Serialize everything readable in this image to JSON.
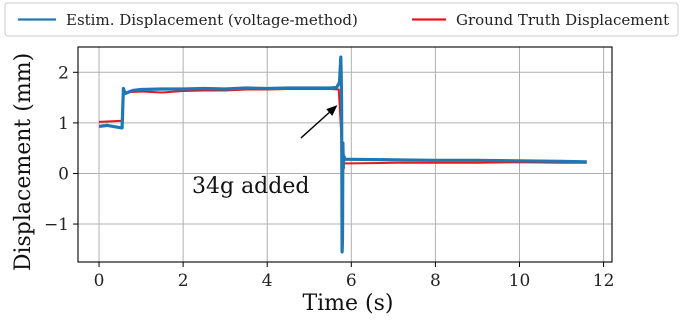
{
  "chart_data": {
    "type": "line",
    "xlabel": "Time (s)",
    "ylabel": "Displacement (mm)",
    "xlim": [
      -0.5,
      12.2
    ],
    "ylim": [
      -1.75,
      2.5
    ],
    "x_ticks": [
      0,
      2,
      4,
      6,
      8,
      10,
      12
    ],
    "y_ticks": [
      -1,
      0,
      1,
      2
    ],
    "x_tick_labels": [
      "0",
      "2",
      "4",
      "6",
      "8",
      "10",
      "12"
    ],
    "y_tick_labels": [
      "−1",
      "0",
      "1",
      "2"
    ],
    "grid": true,
    "legend": {
      "placement": "top-outside",
      "columns": 2
    },
    "series": [
      {
        "name": "Estim. Displacement (voltage-method)",
        "color": "#1f77b4",
        "points": [
          [
            0.0,
            0.93
          ],
          [
            0.2,
            0.95
          ],
          [
            0.4,
            0.92
          ],
          [
            0.55,
            0.9
          ],
          [
            0.58,
            1.68
          ],
          [
            0.62,
            1.58
          ],
          [
            0.8,
            1.64
          ],
          [
            1.0,
            1.66
          ],
          [
            1.5,
            1.67
          ],
          [
            2.0,
            1.67
          ],
          [
            2.5,
            1.68
          ],
          [
            3.0,
            1.67
          ],
          [
            3.5,
            1.69
          ],
          [
            4.0,
            1.68
          ],
          [
            4.5,
            1.69
          ],
          [
            5.0,
            1.69
          ],
          [
            5.5,
            1.69
          ],
          [
            5.65,
            1.7
          ],
          [
            5.72,
            1.8
          ],
          [
            5.75,
            2.3
          ],
          [
            5.76,
            1.95
          ],
          [
            5.77,
            1.4
          ],
          [
            5.78,
            -1.55
          ],
          [
            5.79,
            -1.3
          ],
          [
            5.8,
            0.6
          ],
          [
            5.81,
            0.1
          ],
          [
            5.82,
            0.35
          ],
          [
            5.85,
            0.28
          ],
          [
            6.0,
            0.28
          ],
          [
            7.0,
            0.27
          ],
          [
            8.0,
            0.26
          ],
          [
            9.0,
            0.26
          ],
          [
            10.0,
            0.25
          ],
          [
            11.0,
            0.24
          ],
          [
            11.6,
            0.23
          ]
        ]
      },
      {
        "name": "Ground Truth Displacement",
        "color": "#e31a1c",
        "points": [
          [
            0.0,
            1.02
          ],
          [
            0.5,
            1.04
          ],
          [
            0.55,
            1.04
          ],
          [
            0.58,
            1.6
          ],
          [
            1.0,
            1.62
          ],
          [
            1.5,
            1.6
          ],
          [
            2.0,
            1.63
          ],
          [
            2.5,
            1.64
          ],
          [
            3.0,
            1.64
          ],
          [
            3.5,
            1.66
          ],
          [
            4.0,
            1.66
          ],
          [
            4.5,
            1.67
          ],
          [
            5.0,
            1.67
          ],
          [
            5.5,
            1.67
          ],
          [
            5.7,
            1.66
          ],
          [
            5.72,
            1.4
          ],
          [
            5.8,
            0.2
          ],
          [
            6.0,
            0.2
          ],
          [
            7.0,
            0.21
          ],
          [
            8.0,
            0.21
          ],
          [
            9.0,
            0.21
          ],
          [
            10.0,
            0.22
          ],
          [
            11.0,
            0.21
          ],
          [
            11.6,
            0.21
          ]
        ]
      }
    ],
    "annotations": [
      {
        "text": "34g added",
        "arrow_from": [
          4.8,
          0.7
        ],
        "arrow_to": [
          5.67,
          1.35
        ]
      }
    ]
  }
}
